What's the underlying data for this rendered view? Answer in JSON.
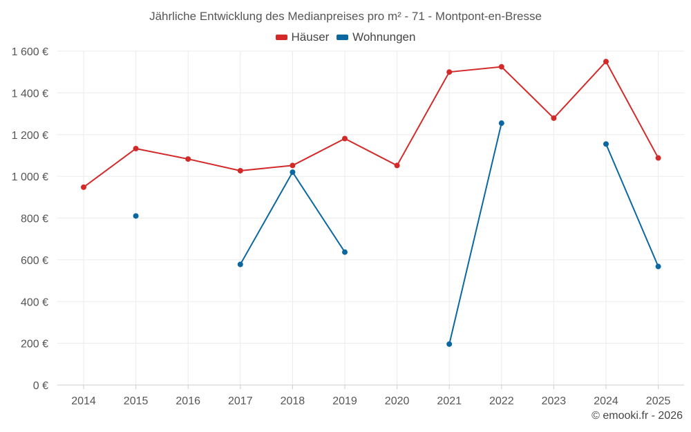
{
  "chart_data": {
    "type": "line",
    "title": "Jährliche Entwicklung des Medianpreises pro m² - 71 - Montpont-en-Bresse",
    "categories": [
      "2014",
      "2015",
      "2016",
      "2017",
      "2018",
      "2019",
      "2020",
      "2021",
      "2022",
      "2023",
      "2024",
      "2025"
    ],
    "y_ticks": [
      "0 €",
      "200 €",
      "400 €",
      "600 €",
      "800 €",
      "1 000 €",
      "1 200 €",
      "1 400 €",
      "1 600 €"
    ],
    "ylim": [
      0,
      1600
    ],
    "grid": true,
    "legend_position": "top-center",
    "series": [
      {
        "name": "Häuser",
        "color": "#d32929",
        "values": [
          948,
          1133,
          1083,
          1027,
          1052,
          1181,
          1052,
          1500,
          1525,
          1279,
          1550,
          1088
        ]
      },
      {
        "name": "Wohnungen",
        "color": "#0a67a0",
        "values": [
          null,
          810,
          null,
          578,
          1020,
          637,
          null,
          196,
          1255,
          null,
          1155,
          568
        ]
      }
    ]
  },
  "credit": "© emooki.fr - 2026"
}
